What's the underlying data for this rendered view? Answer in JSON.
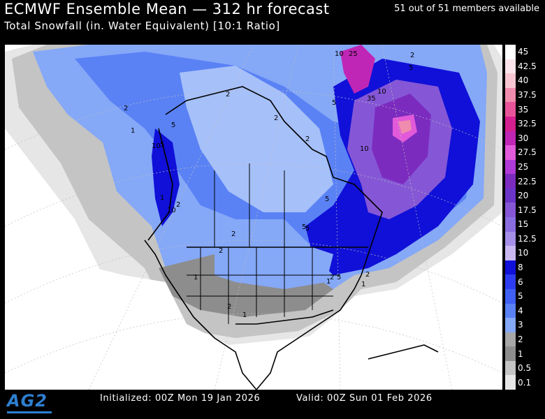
{
  "header": {
    "title": "ECMWF Ensemble Mean — 312 hr forecast",
    "members": "51 out of 51 members available",
    "subtitle": "Total Snowfall (in. Water Equivalent) [10:1 Ratio]"
  },
  "footer": {
    "initialized": "Initialized: 00Z Mon 19 Jan 2026",
    "valid": "Valid: 00Z Sun 01 Feb 2026",
    "logo": "AG2"
  },
  "legend": {
    "levels": [
      {
        "label": "45",
        "color": "#ffffff"
      },
      {
        "label": "42.5",
        "color": "#fce4ec"
      },
      {
        "label": "40",
        "color": "#f7c6d2"
      },
      {
        "label": "37.5",
        "color": "#f08cad"
      },
      {
        "label": "35",
        "color": "#e8549a"
      },
      {
        "label": "32.5",
        "color": "#d41f8f"
      },
      {
        "label": "30",
        "color": "#c026b5"
      },
      {
        "label": "27.5",
        "color": "#e25ad9"
      },
      {
        "label": "25",
        "color": "#b03ad8"
      },
      {
        "label": "22.5",
        "color": "#7c2bbf"
      },
      {
        "label": "20",
        "color": "#6b35c8"
      },
      {
        "label": "17.5",
        "color": "#8557d6"
      },
      {
        "label": "15",
        "color": "#8a6ee0"
      },
      {
        "label": "12.5",
        "color": "#a68fe8"
      },
      {
        "label": "10",
        "color": "#c9b8f0"
      },
      {
        "label": "8",
        "color": "#1010d8"
      },
      {
        "label": "6",
        "color": "#2d3cf0"
      },
      {
        "label": "5",
        "color": "#3f60f2"
      },
      {
        "label": "4",
        "color": "#5a82f5"
      },
      {
        "label": "3",
        "color": "#85a8f7"
      },
      {
        "label": "2",
        "color": "#a7a7a7"
      },
      {
        "label": "1",
        "color": "#8d8d8d"
      },
      {
        "label": "0.5",
        "color": "#c4c4c4"
      },
      {
        "label": "0.1",
        "color": "#e6e6e6"
      }
    ]
  },
  "contour_labels": [
    "2",
    "10",
    "25",
    "5",
    "10",
    "35",
    "2",
    "5",
    "10",
    "2",
    "1",
    "5",
    "10",
    "5",
    "2",
    "2",
    "1",
    "10",
    "2",
    "2",
    "2",
    "5",
    "1",
    "2",
    "5",
    "1",
    "2",
    "1",
    "1",
    "2",
    "5",
    "5"
  ]
}
